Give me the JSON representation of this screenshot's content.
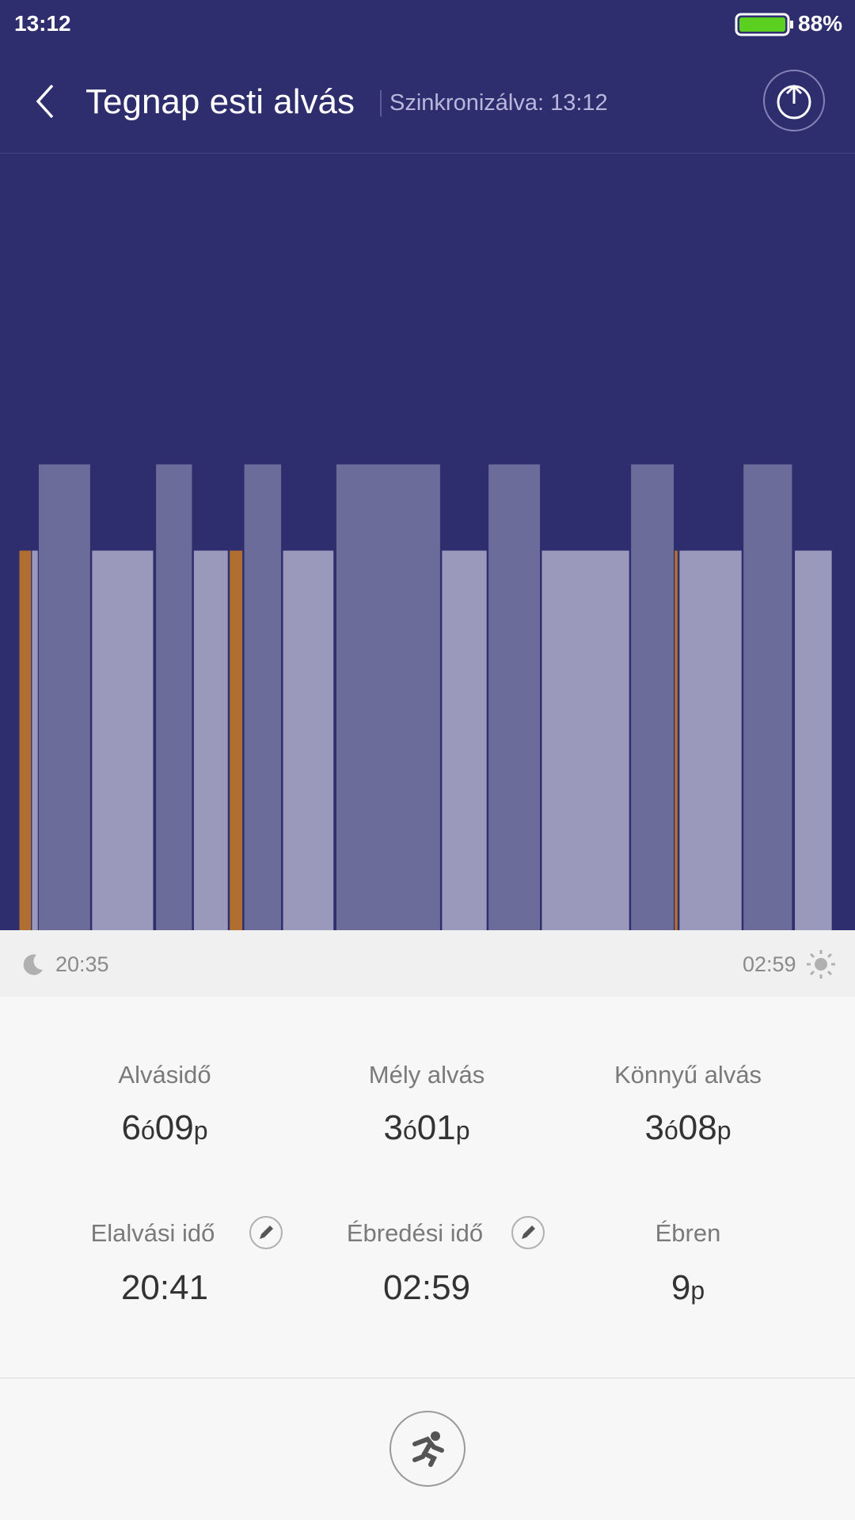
{
  "status_bar": {
    "time": "13:12",
    "battery": "88%"
  },
  "header": {
    "title": "Tegnap esti alvás",
    "sync": "Szinkronizálva: 13:12"
  },
  "timeline": {
    "start": "20:35",
    "end": "02:59"
  },
  "stats": [
    {
      "label": "Alvásidő",
      "value": [
        "6",
        "ó",
        "09",
        "p"
      ]
    },
    {
      "label": "Mély alvás",
      "value": [
        "3",
        "ó",
        "01",
        "p"
      ]
    },
    {
      "label": "Könnyű alvás",
      "value": [
        "3",
        "ó",
        "08",
        "p"
      ]
    },
    {
      "label": "Elalvási idő",
      "value": [
        "20:41"
      ]
    },
    {
      "label": "Ébredési idő",
      "value": [
        "02:59"
      ]
    },
    {
      "label": "Ébren",
      "value": [
        "9",
        "p"
      ]
    }
  ]
}
